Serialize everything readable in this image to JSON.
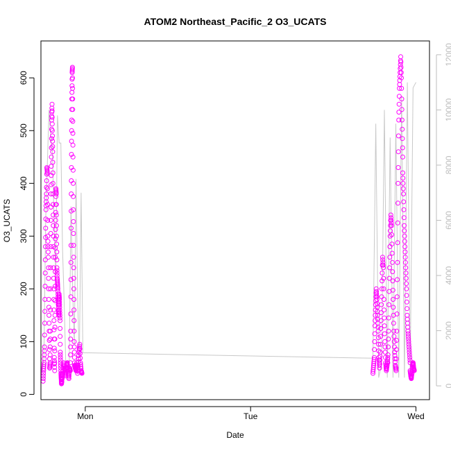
{
  "chart_data": {
    "type": "scatter",
    "title": "ATOM2 Northeast_Pacific_2 O3_UCATS",
    "xlabel": "Date",
    "ylabel": "O3_UCATS",
    "x_axis": {
      "type": "time",
      "ticks": [
        {
          "label": "Mon",
          "day": 0
        },
        {
          "label": "Tue",
          "day": 1
        },
        {
          "label": "Wed",
          "day": 2
        }
      ],
      "range_days": [
        -0.268,
        2.082
      ]
    },
    "ylim_left": [
      -10,
      670
    ],
    "yticks_left": [
      "0",
      "100",
      "200",
      "300",
      "400",
      "500",
      "600"
    ],
    "ylim_right": [
      -500,
      12500
    ],
    "yticks_right": [
      "0",
      "2000",
      "4000",
      "6000",
      "8000",
      "10000",
      "12000"
    ],
    "grid": false,
    "series": [
      {
        "role": "O3_UCATS (left axis, open circles)",
        "color": "#ff00ff",
        "marker": "open-circle",
        "segments": [
          {
            "x_start": -0.255,
            "x_end": -0.215,
            "y": [
              25,
              45,
              60,
              90,
              180,
              280,
              350,
              380,
              430,
              420,
              300,
              260,
              180,
              120,
              50
            ]
          },
          {
            "x_start": -0.215,
            "x_end": -0.185,
            "y": [
              50,
              60,
              120,
              280,
              380,
              450,
              520,
              550,
              500,
              460,
              380,
              300,
              220,
              140,
              70,
              45
            ]
          },
          {
            "x_start": -0.185,
            "x_end": -0.16,
            "y": [
              60,
              150,
              260,
              330,
              390,
              380,
              300,
              240,
              220,
              210,
              200,
              180,
              160,
              150
            ]
          },
          {
            "x_start": -0.16,
            "x_end": -0.14,
            "y": [
              170,
              190,
              180,
              160,
              140,
              80,
              60,
              40,
              30,
              20,
              25,
              40
            ]
          },
          {
            "x_start": -0.14,
            "x_end": -0.09,
            "y": [
              30,
              40,
              60,
              50,
              45,
              35,
              55,
              60,
              40,
              30,
              50,
              45
            ]
          },
          {
            "x_start": -0.09,
            "x_end": -0.065,
            "y": [
              60,
              120,
              250,
              380,
              480,
              560,
              610,
              620,
              540,
              450,
              350,
              260,
              180,
              100,
              60
            ]
          },
          {
            "x_start": -0.065,
            "x_end": -0.02,
            "y": [
              55,
              50,
              45,
              60,
              40,
              55,
              80,
              95,
              60,
              45,
              40
            ]
          },
          {
            "x_start": 1.74,
            "x_end": 1.78,
            "y": [
              40,
              55,
              70,
              130,
              170,
              200,
              180,
              150,
              120,
              70,
              50
            ]
          },
          {
            "x_start": 1.78,
            "x_end": 1.83,
            "y": [
              50,
              80,
              140,
              200,
              260,
              240,
              160,
              100,
              60,
              45,
              55,
              70
            ]
          },
          {
            "x_start": 1.83,
            "x_end": 1.88,
            "y": [
              60,
              120,
              220,
              300,
              340,
              320,
              250,
              180,
              120,
              80,
              55,
              45
            ]
          },
          {
            "x_start": 1.88,
            "x_end": 1.92,
            "y": [
              50,
              120,
              250,
              400,
              520,
              580,
              610,
              640,
              600,
              520,
              450
            ]
          },
          {
            "x_start": 1.92,
            "x_end": 1.965,
            "y": [
              420,
              380,
              320,
              280,
              240,
              200,
              150,
              120,
              100,
              80,
              60
            ]
          },
          {
            "x_start": 1.965,
            "x_end": 1.99,
            "y": [
              45,
              35,
              30,
              40,
              55,
              60,
              50,
              45
            ]
          }
        ]
      },
      {
        "role": "secondary (right axis, grey line)",
        "color": "#c8c8c8",
        "marker": "line",
        "segments": [
          {
            "x_start": -0.26,
            "x_end": -0.015,
            "y": [
              500,
              1000,
              6000,
              8000,
              10000,
              9000,
              8500,
              6000,
              4000,
              9800,
              8800,
              8800,
              5000,
              3000,
              600,
              400,
              800,
              6500,
              3500,
              1500,
              7500,
              3000,
              1000,
              7000,
              1500
            ]
          },
          {
            "x_start": -0.015,
            "x_end": 1.74,
            "y": [
              1200,
              1000
            ]
          },
          {
            "x_start": 1.74,
            "x_end": 2.0,
            "y": [
              1000,
              9500,
              300,
              800,
              10000,
              300,
              9000,
              300,
              9500,
              300,
              10500,
              300,
              11000,
              500,
              10800,
              11000
            ]
          }
        ]
      }
    ]
  }
}
